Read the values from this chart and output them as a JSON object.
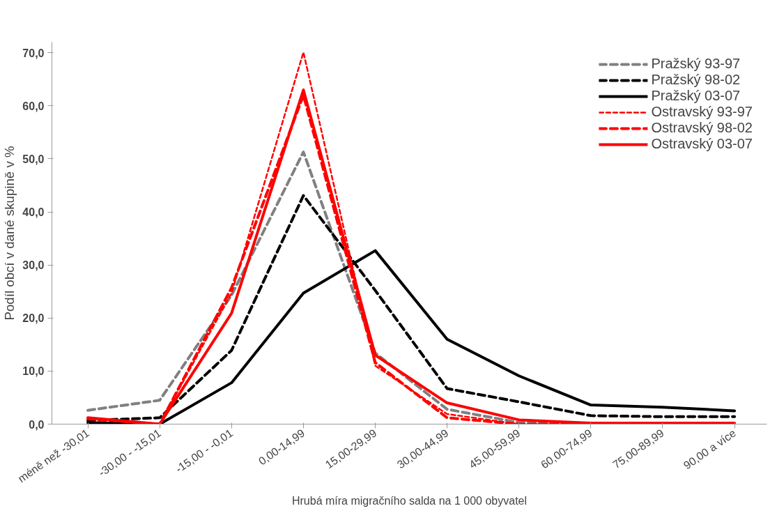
{
  "chart_data": {
    "type": "line",
    "xlabel": "Hrubá míra migračního salda na 1 000 obyvatel",
    "ylabel": "Podíl obcí v dané skupině v %",
    "categories": [
      "méně než -30,01",
      "-30,00 - -15,01",
      "-15,00 - -0,01",
      "0,00-14,99",
      "15,00-29,99",
      "30,00-44,99",
      "45,00-59,99",
      "60,00-74,99",
      "75,00-89,99",
      "90,00 a více"
    ],
    "series": [
      {
        "name": "Pražský 93-97",
        "color": "#808080",
        "line_style": "dashed",
        "values": [
          2.6,
          4.5,
          24.3,
          51.3,
          13.4,
          2.8,
          0.3,
          0,
          0,
          0
        ]
      },
      {
        "name": "Pražský 98-02",
        "color": "#000000",
        "line_style": "dashed",
        "values": [
          0.7,
          1.2,
          13.9,
          43.1,
          25.2,
          6.7,
          4.2,
          1.6,
          1.4,
          1.4
        ]
      },
      {
        "name": "Pražský 03-07",
        "color": "#000000",
        "line_style": "solid",
        "values": [
          0.3,
          0,
          7.8,
          24.7,
          32.7,
          16,
          9.1,
          3.6,
          3.2,
          2.5
        ]
      },
      {
        "name": "Ostravský 93-97",
        "color": "#ff0000",
        "line_style": "dotted",
        "values": [
          1.0,
          0,
          24.7,
          70.1,
          11,
          1.9,
          0,
          0,
          0,
          0
        ]
      },
      {
        "name": "Ostravský 98-02",
        "color": "#ff0000",
        "line_style": "dashed",
        "values": [
          1.0,
          0,
          25.7,
          62,
          11.6,
          1.2,
          0,
          0,
          0,
          0
        ]
      },
      {
        "name": "Ostravský 03-07",
        "color": "#ff0000",
        "line_style": "solid",
        "values": [
          1.2,
          0,
          20.9,
          63,
          13,
          4.0,
          0.8,
          0.2,
          0.2,
          0.2
        ]
      }
    ],
    "ylim": [
      0,
      72
    ],
    "yticks": [
      {
        "value": 0,
        "label": "0,0"
      },
      {
        "value": 10,
        "label": "10,0"
      },
      {
        "value": 20,
        "label": "20,0"
      },
      {
        "value": 30,
        "label": "30,0"
      },
      {
        "value": 40,
        "label": "40,0"
      },
      {
        "value": 50,
        "label": "50,0"
      },
      {
        "value": 60,
        "label": "60,0"
      },
      {
        "value": 70,
        "label": "70,0"
      }
    ],
    "grid": false,
    "legend": "top right",
    "marker": "none"
  }
}
